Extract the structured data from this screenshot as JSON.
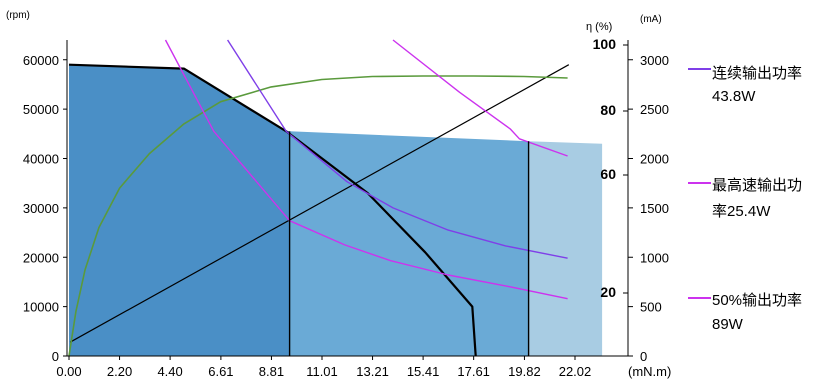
{
  "chart_data": {
    "type": "line",
    "title": "",
    "x_unit": "(mN.m)",
    "x_ticks": [
      "0.00",
      "2.20",
      "4.40",
      "6.61",
      "8.81",
      "11.01",
      "13.21",
      "15.41",
      "17.61",
      "19.82",
      "22.02"
    ],
    "x_tick_values": [
      0.0,
      2.2,
      4.4,
      6.61,
      8.81,
      11.01,
      13.21,
      15.41,
      17.61,
      19.82,
      22.02
    ],
    "xlim": [
      0,
      22.02
    ],
    "left_axis": {
      "unit": "(rpm)",
      "ticks": [
        "0",
        "10000",
        "20000",
        "30000",
        "40000",
        "50000",
        "60000"
      ],
      "lim": [
        0,
        64000
      ]
    },
    "right_axis_current": {
      "unit": "(mA)",
      "ticks": [
        "0",
        "500",
        "1000",
        "1500",
        "2000",
        "2500",
        "3000"
      ],
      "lim": [
        0,
        3200
      ]
    },
    "right_axis_efficiency": {
      "unit": "η (%)",
      "ticks": [
        "20",
        "60",
        "80",
        "100"
      ],
      "tick_values": [
        20,
        60,
        80,
        100
      ]
    },
    "regions": [
      {
        "name": "continuous-operation",
        "color": "#2e6fad",
        "points": [
          [
            0,
            47000
          ],
          [
            9.6,
            45500
          ],
          [
            9.6,
            0
          ],
          [
            0,
            0
          ]
        ]
      },
      {
        "name": "short-term-operation",
        "color": "#4a8fc6",
        "points": [
          [
            0,
            59000
          ],
          [
            5.0,
            58200
          ],
          [
            9.45,
            45500
          ],
          [
            13.0,
            33000
          ],
          [
            15.5,
            21000
          ],
          [
            17.55,
            10000
          ],
          [
            17.7,
            0
          ],
          [
            0,
            0
          ]
        ]
      },
      {
        "name": "high-speed-region",
        "color": "#6aaad6",
        "points": [
          [
            9.6,
            45500
          ],
          [
            20.0,
            43500
          ],
          [
            20.0,
            0
          ],
          [
            9.6,
            0
          ]
        ]
      },
      {
        "name": "extended-region",
        "color": "#a8cce3",
        "points": [
          [
            20.0,
            43500
          ],
          [
            23.2,
            43000
          ],
          [
            23.2,
            0
          ],
          [
            20.0,
            0
          ]
        ]
      }
    ],
    "series": [
      {
        "key": "speed_torque",
        "color": "#000000",
        "width": 2.2,
        "points": [
          [
            0,
            59000
          ],
          [
            5.0,
            58200
          ],
          [
            9.45,
            45500
          ],
          [
            13.0,
            33000
          ],
          [
            15.5,
            21000
          ],
          [
            17.55,
            10000
          ],
          [
            17.7,
            0
          ]
        ]
      },
      {
        "key": "current",
        "color": "#000000",
        "width": 1.2,
        "points": [
          [
            0.05,
            2800
          ],
          [
            21.75,
            59000
          ]
        ]
      },
      {
        "key": "efficiency",
        "color": "#5a9a3c",
        "width": 1.6,
        "points": [
          [
            0,
            0
          ],
          [
            0.3,
            9000
          ],
          [
            0.7,
            17500
          ],
          [
            1.3,
            26000
          ],
          [
            2.2,
            34000
          ],
          [
            3.5,
            41000
          ],
          [
            5.0,
            47000
          ],
          [
            6.6,
            51500
          ],
          [
            8.8,
            54500
          ],
          [
            11.0,
            56000
          ],
          [
            13.2,
            56600
          ],
          [
            15.4,
            56700
          ],
          [
            17.6,
            56700
          ],
          [
            19.8,
            56600
          ],
          [
            21.7,
            56300
          ]
        ]
      },
      {
        "key": "continuous-power",
        "color": "#7f3fe8",
        "width": 1.4,
        "points": [
          [
            6.9,
            64000
          ],
          [
            9.45,
            45500
          ],
          [
            12.1,
            35300
          ],
          [
            14.1,
            30000
          ],
          [
            16.5,
            25500
          ],
          [
            19.0,
            22300
          ],
          [
            21.7,
            19800
          ]
        ]
      },
      {
        "key": "max-speed-power",
        "color": "#cc33ee",
        "width": 1.4,
        "points": [
          [
            4.2,
            64000
          ],
          [
            6.3,
            45500
          ],
          [
            9.6,
            27400
          ],
          [
            12.0,
            22500
          ],
          [
            14.0,
            19300
          ],
          [
            16.5,
            16400
          ],
          [
            19.0,
            14200
          ],
          [
            21.7,
            11600
          ]
        ]
      },
      {
        "key": "half-output-power",
        "color": "#cc33ee",
        "width": 1.4,
        "points": [
          [
            14.1,
            64000
          ],
          [
            17.0,
            53400
          ],
          [
            19.2,
            46000
          ],
          [
            19.6,
            44000
          ],
          [
            21.7,
            40500
          ]
        ]
      }
    ],
    "vertical_lines": [
      {
        "color": "#000000",
        "x": 9.6,
        "y_top": 45500
      },
      {
        "color": "#000000",
        "x": 20.0,
        "y_top": 43500
      }
    ],
    "legend": [
      {
        "text_lines": [
          "连续输出功率",
          "43.8W"
        ],
        "color": "#7f3fe8"
      },
      {
        "text_lines": [
          "最高速输出功",
          "率25.4W"
        ],
        "color": "#cc33ee"
      },
      {
        "text_lines": [
          "50%输出功率",
          "89W"
        ],
        "color": "#cc33ee"
      }
    ]
  }
}
